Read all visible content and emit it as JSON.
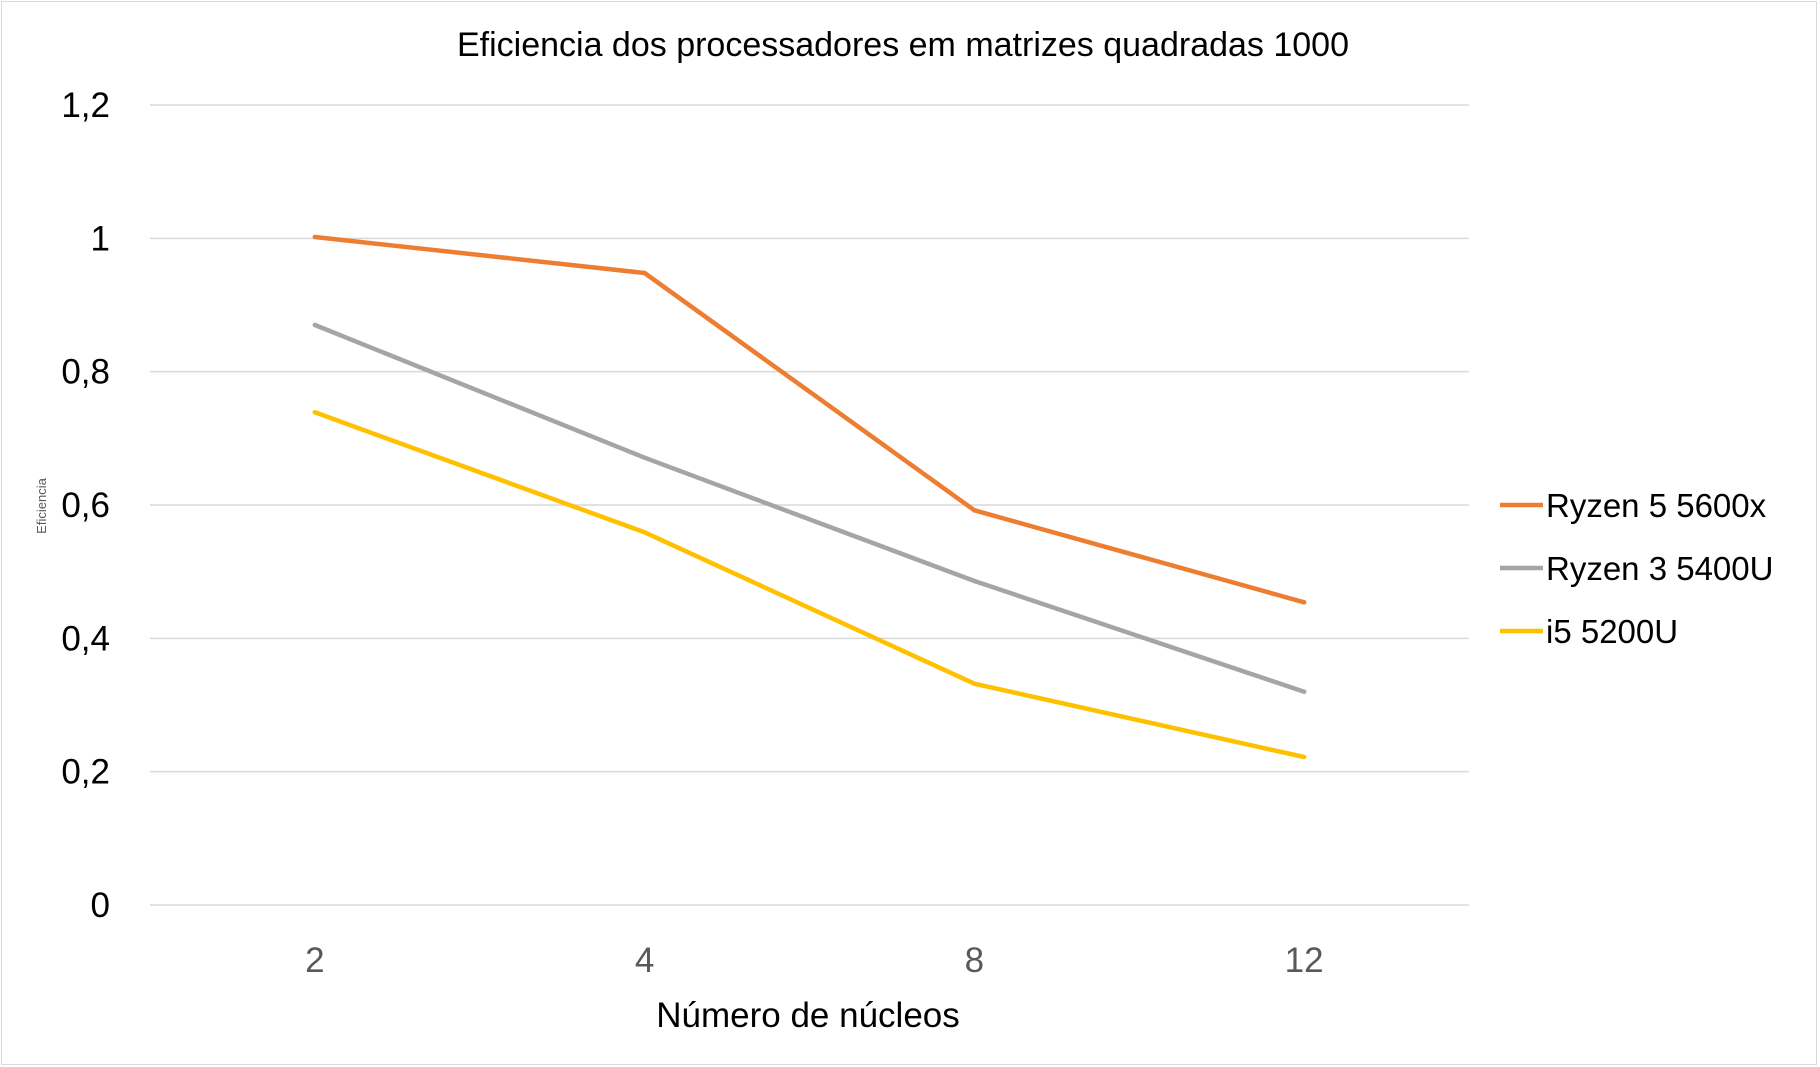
{
  "chart_data": {
    "type": "line",
    "title": "Eficiencia dos processadores em matrizes quadradas 1000",
    "xlabel": "Número de núcleos",
    "ylabel": "Eficiencia",
    "categories": [
      "2",
      "4",
      "8",
      "12"
    ],
    "ylim": [
      0,
      1.2
    ],
    "yticks": [
      "0",
      "0,2",
      "0,4",
      "0,6",
      "0,8",
      "1",
      "1,2"
    ],
    "grid": true,
    "legend_position": "right",
    "series": [
      {
        "name": "Ryzen 5 5600x",
        "color": "#ED7D31",
        "values": [
          1.002,
          0.948,
          0.592,
          0.454
        ]
      },
      {
        "name": "Ryzen 3 5400U",
        "color": "#A5A5A5",
        "values": [
          0.87,
          0.671,
          0.486,
          0.32
        ]
      },
      {
        "name": "i5 5200U",
        "color": "#FFC000",
        "values": [
          0.739,
          0.559,
          0.332,
          0.222
        ]
      }
    ]
  }
}
